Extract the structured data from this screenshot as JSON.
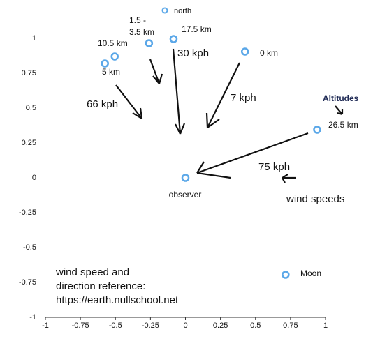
{
  "chart_data": {
    "type": "scatter",
    "series": [
      {
        "name": "north",
        "color": "#5aa7e8",
        "x": [
          -0.505,
          -0.575,
          -0.26,
          -0.085,
          0.425,
          0.94,
          0,
          0.715
        ],
        "y": [
          0.87,
          0.82,
          0.965,
          0.995,
          0.905,
          0.345,
          0,
          -0.695
        ],
        "labels": [
          "10.5 km",
          "5 km",
          "1.5 -\n3.5 km",
          "17.5 km",
          "0 km",
          "26.5 km",
          "observer",
          "Moon"
        ]
      }
    ],
    "xlim": [
      -1,
      1
    ],
    "ylim": [
      -1,
      1
    ],
    "xticks": [
      -1,
      -0.75,
      -0.5,
      -0.25,
      0,
      0.25,
      0.5,
      0.75,
      1
    ],
    "yticks": [
      -1,
      -0.75,
      -0.5,
      -0.25,
      0,
      0.25,
      0.5,
      0.75,
      1
    ],
    "annotations": [
      "30 kph",
      "7 kph",
      "66 kph",
      "75 kph",
      "wind speeds",
      "Altitudes",
      "wind speed and\ndirection reference:\nhttps://earth.nullschool.net"
    ]
  }
}
